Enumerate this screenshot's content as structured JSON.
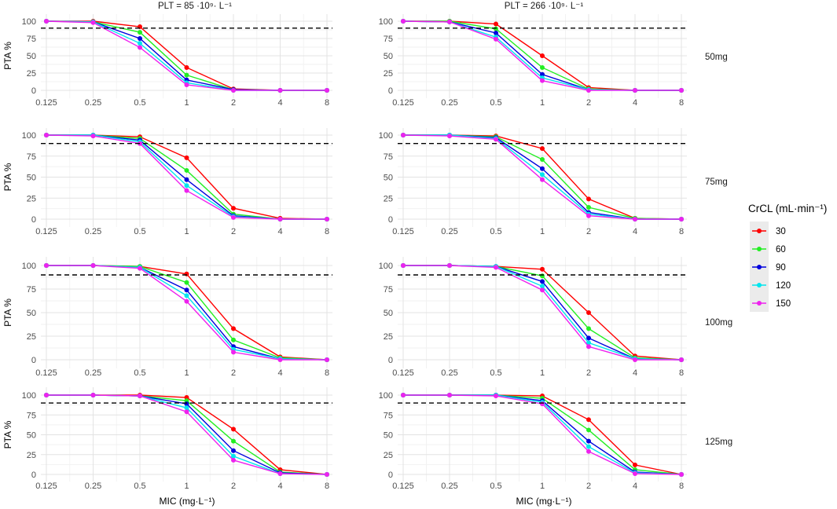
{
  "chart_data": {
    "type": "line",
    "title": "",
    "xlabel": "MIC (mg·L⁻¹)",
    "ylabel": "PTA %",
    "categories": [
      "0.125",
      "0.25",
      "0.5",
      "1",
      "2",
      "4",
      "8"
    ],
    "ylim": [
      0,
      100
    ],
    "yticks": [
      "0",
      "25",
      "50",
      "75",
      "100"
    ],
    "threshold": 90,
    "column_labels": [
      "PLT = 85 ·10⁹· L⁻¹",
      "PLT = 266 ·10⁹· L⁻¹"
    ],
    "row_labels": [
      "50mg",
      "75mg",
      "100mg",
      "125mg"
    ],
    "legend": {
      "title": "CrCL (mL·min⁻¹)",
      "entries": [
        "30",
        "60",
        "90",
        "120",
        "150"
      ],
      "colors": [
        "#ff0000",
        "#22ee22",
        "#0000dd",
        "#00e5ee",
        "#ee22ee"
      ]
    },
    "panels": [
      {
        "column": "PLT = 85 ·10⁹· L⁻¹",
        "dose": "50mg",
        "series": [
          {
            "name": "30",
            "values": [
              100,
              100,
              92,
              33,
              2,
              0,
              0
            ]
          },
          {
            "name": "60",
            "values": [
              100,
              99,
              84,
              22,
              1,
              0,
              0
            ]
          },
          {
            "name": "90",
            "values": [
              100,
              99,
              75,
              15,
              1,
              0,
              0
            ]
          },
          {
            "name": "120",
            "values": [
              100,
              99,
              68,
              11,
              0,
              0,
              0
            ]
          },
          {
            "name": "150",
            "values": [
              100,
              98,
              62,
              8,
              0,
              0,
              0
            ]
          }
        ]
      },
      {
        "column": "PLT = 266 ·10⁹· L⁻¹",
        "dose": "50mg",
        "series": [
          {
            "name": "30",
            "values": [
              100,
              100,
              96,
              50,
              4,
              0,
              0
            ]
          },
          {
            "name": "60",
            "values": [
              100,
              100,
              89,
              33,
              2,
              0,
              0
            ]
          },
          {
            "name": "90",
            "values": [
              100,
              99,
              83,
              23,
              1,
              0,
              0
            ]
          },
          {
            "name": "120",
            "values": [
              100,
              99,
              77,
              18,
              1,
              0,
              0
            ]
          },
          {
            "name": "150",
            "values": [
              100,
              99,
              74,
              14,
              0,
              0,
              0
            ]
          }
        ]
      },
      {
        "column": "PLT = 85 ·10⁹· L⁻¹",
        "dose": "75mg",
        "series": [
          {
            "name": "30",
            "values": [
              100,
              100,
              98,
              73,
              13,
              1,
              0
            ]
          },
          {
            "name": "60",
            "values": [
              100,
              100,
              96,
              58,
              6,
              0,
              0
            ]
          },
          {
            "name": "90",
            "values": [
              100,
              100,
              94,
              47,
              4,
              0,
              0
            ]
          },
          {
            "name": "120",
            "values": [
              100,
              100,
              92,
              40,
              3,
              0,
              0
            ]
          },
          {
            "name": "150",
            "values": [
              100,
              99,
              90,
              34,
              2,
              0,
              0
            ]
          }
        ]
      },
      {
        "column": "PLT = 266 ·10⁹· L⁻¹",
        "dose": "75mg",
        "series": [
          {
            "name": "30",
            "values": [
              100,
              100,
              99,
              84,
              24,
              1,
              0
            ]
          },
          {
            "name": "60",
            "values": [
              100,
              100,
              98,
              71,
              14,
              1,
              0
            ]
          },
          {
            "name": "90",
            "values": [
              100,
              100,
              97,
              60,
              8,
              0,
              0
            ]
          },
          {
            "name": "120",
            "values": [
              100,
              100,
              96,
              53,
              6,
              0,
              0
            ]
          },
          {
            "name": "150",
            "values": [
              100,
              99,
              95,
              47,
              4,
              0,
              0
            ]
          }
        ]
      },
      {
        "column": "PLT = 85 ·10⁹· L⁻¹",
        "dose": "100mg",
        "series": [
          {
            "name": "30",
            "values": [
              100,
              100,
              99,
              91,
              33,
              3,
              0
            ]
          },
          {
            "name": "60",
            "values": [
              100,
              100,
              99,
              82,
              21,
              2,
              0
            ]
          },
          {
            "name": "90",
            "values": [
              100,
              100,
              98,
              74,
              14,
              1,
              0
            ]
          },
          {
            "name": "120",
            "values": [
              100,
              100,
              98,
              68,
              11,
              1,
              0
            ]
          },
          {
            "name": "150",
            "values": [
              100,
              100,
              97,
              62,
              8,
              0,
              0
            ]
          }
        ]
      },
      {
        "column": "PLT = 266 ·10⁹· L⁻¹",
        "dose": "100mg",
        "series": [
          {
            "name": "30",
            "values": [
              100,
              100,
              99,
              96,
              50,
              4,
              0
            ]
          },
          {
            "name": "60",
            "values": [
              100,
              100,
              99,
              89,
              33,
              2,
              0
            ]
          },
          {
            "name": "90",
            "values": [
              100,
              100,
              99,
              83,
              23,
              1,
              0
            ]
          },
          {
            "name": "120",
            "values": [
              100,
              100,
              99,
              78,
              18,
              1,
              0
            ]
          },
          {
            "name": "150",
            "values": [
              100,
              100,
              98,
              74,
              14,
              0,
              0
            ]
          }
        ]
      },
      {
        "column": "PLT = 85 ·10⁹· L⁻¹",
        "dose": "125mg",
        "series": [
          {
            "name": "30",
            "values": [
              100,
              100,
              100,
              97,
              57,
              6,
              0
            ]
          },
          {
            "name": "60",
            "values": [
              100,
              100,
              99,
              93,
              42,
              3,
              0
            ]
          },
          {
            "name": "90",
            "values": [
              100,
              100,
              99,
              89,
              30,
              2,
              0
            ]
          },
          {
            "name": "120",
            "values": [
              100,
              100,
              99,
              84,
              23,
              1,
              0
            ]
          },
          {
            "name": "150",
            "values": [
              100,
              100,
              99,
              79,
              18,
              1,
              0
            ]
          }
        ]
      },
      {
        "column": "PLT = 266 ·10⁹· L⁻¹",
        "dose": "125mg",
        "series": [
          {
            "name": "30",
            "values": [
              100,
              100,
              100,
              99,
              69,
              12,
              0
            ]
          },
          {
            "name": "60",
            "values": [
              100,
              100,
              100,
              96,
              56,
              6,
              0
            ]
          },
          {
            "name": "90",
            "values": [
              100,
              100,
              100,
              93,
              42,
              3,
              0
            ]
          },
          {
            "name": "120",
            "values": [
              100,
              100,
              100,
              91,
              35,
              2,
              0
            ]
          },
          {
            "name": "150",
            "values": [
              100,
              100,
              99,
              89,
              29,
              1,
              0
            ]
          }
        ]
      }
    ]
  }
}
